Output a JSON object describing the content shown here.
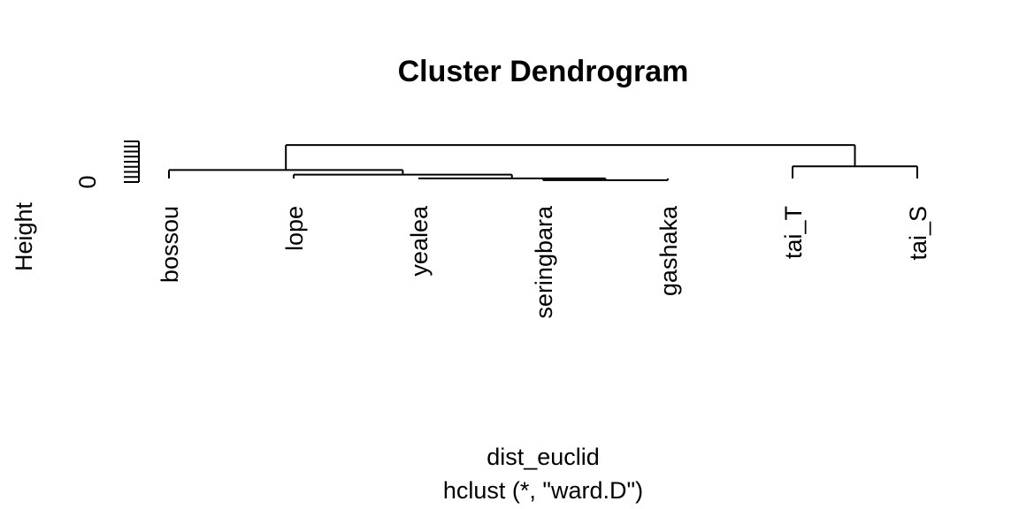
{
  "chart_data": {
    "type": "dendrogram",
    "title": "Cluster Dendrogram",
    "ylabel": "Height",
    "xlabel": "dist_euclid",
    "sublabel": "hclust (*, \"ward.D\")",
    "y_tick_labels": [
      "0"
    ],
    "leaves": [
      "bossou",
      "lope",
      "yealea",
      "seringbara",
      "gashaka",
      "tai_T",
      "tai_S"
    ],
    "merges": [
      {
        "left": "seringbara",
        "right": "gashaka",
        "height": 1.0
      },
      {
        "left": "yealea",
        "right": "m1",
        "height": 2.0
      },
      {
        "left": "lope",
        "right": "m2",
        "height": 4.0
      },
      {
        "left": "bossou",
        "right": "m3",
        "height": 6.5
      },
      {
        "left": "tai_T",
        "right": "tai_S",
        "height": 8.5
      },
      {
        "left": "m4",
        "right": "m5",
        "height": 20.0
      }
    ],
    "ylim": [
      0,
      22
    ]
  }
}
